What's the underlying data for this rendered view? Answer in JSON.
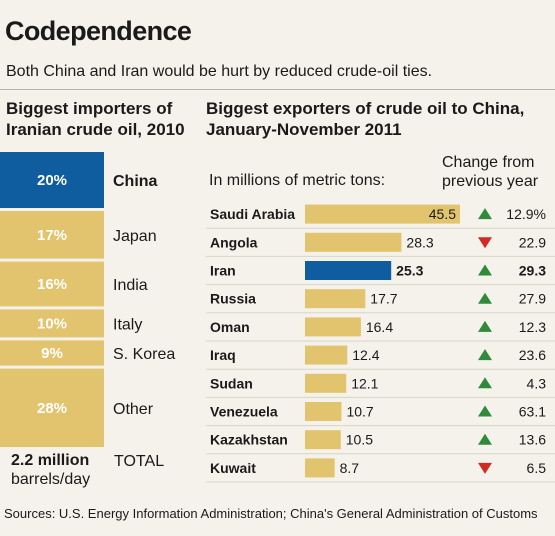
{
  "header": {
    "title": "Codependence",
    "subtitle": "Both China and Iran would be hurt by reduced crude-oil ties."
  },
  "left_panel": {
    "heading": "Biggest importers of Iranian crude oil, 2010",
    "total_value": "2.2 million",
    "total_unit": "barrels/day",
    "total_label": "TOTAL"
  },
  "right_panel": {
    "heading": "Biggest exporters of crude oil to China, January-November 2011",
    "units_note": "In millions of metric tons:",
    "change_heading": "Change from previous year"
  },
  "footer": {
    "sources": "Sources: U.S. Energy Information Administration; China's General Administration of Customs"
  },
  "colors": {
    "highlight": "#0f5d9f",
    "bar": "#e3c46e",
    "up_arrow": "#2f8a3b",
    "down_arrow": "#d12a22",
    "background": "#f4f2ea"
  },
  "chart_data": [
    {
      "type": "bar",
      "subtype": "stacked-100",
      "title": "Biggest importers of Iranian crude oil, 2010",
      "categories": [
        "China",
        "Japan",
        "India",
        "Italy",
        "S. Korea",
        "Other"
      ],
      "labels": [
        "20%",
        "17%",
        "16%",
        "10%",
        "9%",
        "28%"
      ],
      "values": [
        20,
        17,
        16,
        10,
        9,
        28
      ],
      "highlight": "China"
    },
    {
      "type": "bar",
      "orientation": "horizontal",
      "title": "Biggest exporters of crude oil to China, January-November 2011",
      "ylabel": "In millions of metric tons:",
      "categories": [
        "Saudi Arabia",
        "Angola",
        "Iran",
        "Russia",
        "Oman",
        "Iraq",
        "Sudan",
        "Venezuela",
        "Kazakhstan",
        "Kuwait"
      ],
      "values": [
        45.5,
        28.3,
        25.3,
        17.7,
        16.4,
        12.4,
        12.1,
        10.7,
        10.5,
        8.7
      ],
      "value_labels": [
        "45.5",
        "28.3",
        "25.3",
        "17.7",
        "16.4",
        "12.4",
        "12.1",
        "10.7",
        "10.5",
        "8.7"
      ],
      "change_labels": [
        "12.9%",
        "22.9",
        "29.3",
        "27.9",
        "12.3",
        "23.6",
        "4.3",
        "63.1",
        "13.6",
        "6.5"
      ],
      "change_direction": [
        "up",
        "down",
        "up",
        "up",
        "up",
        "up",
        "up",
        "up",
        "up",
        "down"
      ],
      "highlight": "Iran"
    }
  ]
}
